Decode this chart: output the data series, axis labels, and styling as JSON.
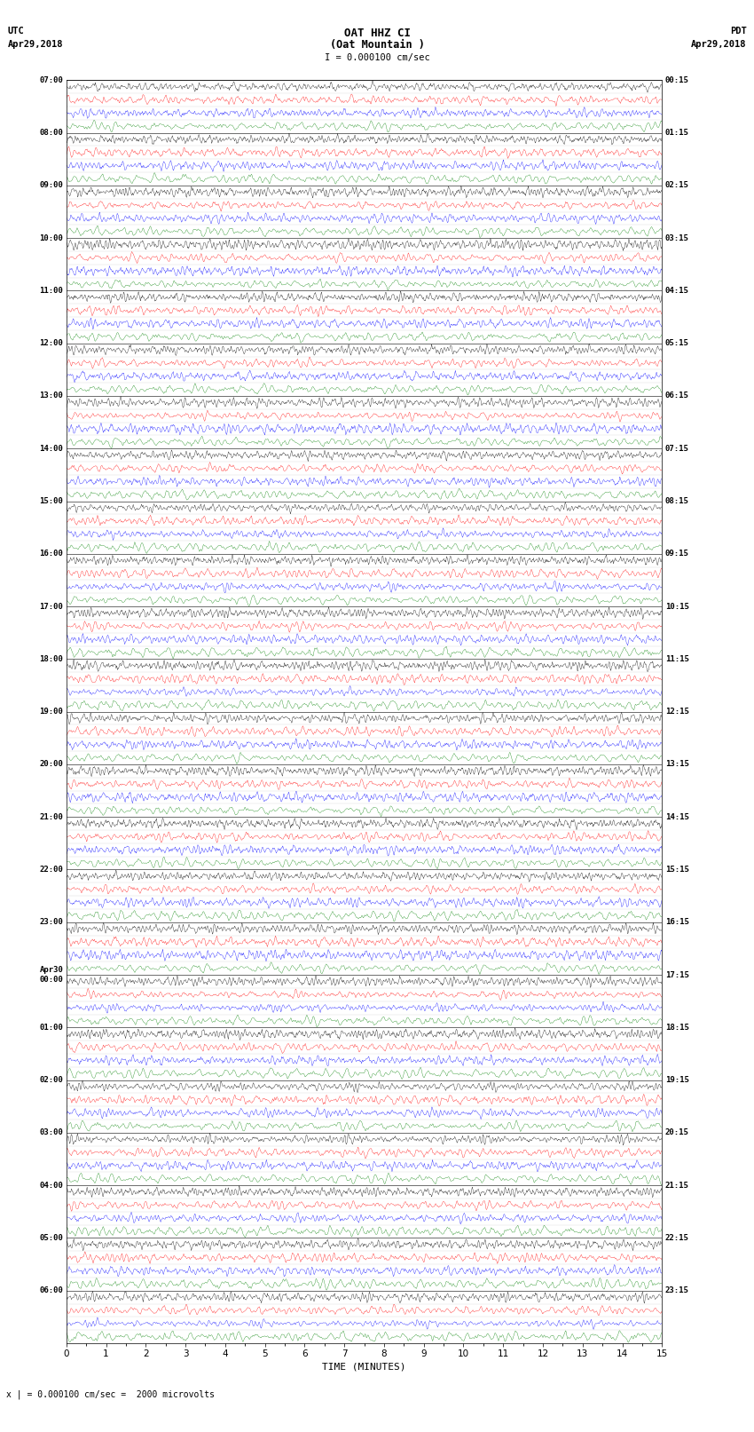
{
  "title_line1": "OAT HHZ CI",
  "title_line2": "(Oat Mountain )",
  "scale_label": "I = 0.000100 cm/sec",
  "bottom_label": "x | = 0.000100 cm/sec =  2000 microvolts",
  "xlabel": "TIME (MINUTES)",
  "utc_label": "UTC",
  "utc_date": "Apr29,2018",
  "pdt_label": "PDT",
  "pdt_date": "Apr29,2018",
  "left_times": [
    "07:00",
    "08:00",
    "09:00",
    "10:00",
    "11:00",
    "12:00",
    "13:00",
    "14:00",
    "15:00",
    "16:00",
    "17:00",
    "18:00",
    "19:00",
    "20:00",
    "21:00",
    "22:00",
    "23:00",
    "Apr30\n00:00",
    "01:00",
    "02:00",
    "03:00",
    "04:00",
    "05:00",
    "06:00"
  ],
  "right_times": [
    "00:15",
    "01:15",
    "02:15",
    "03:15",
    "04:15",
    "05:15",
    "06:15",
    "07:15",
    "08:15",
    "09:15",
    "10:15",
    "11:15",
    "12:15",
    "13:15",
    "14:15",
    "15:15",
    "16:15",
    "17:15",
    "18:15",
    "19:15",
    "20:15",
    "21:15",
    "22:15",
    "23:15"
  ],
  "n_rows": 24,
  "n_sub_traces": 4,
  "minutes_per_row": 15,
  "trace_colors": [
    "black",
    "red",
    "blue",
    "green"
  ],
  "bg_color": "white",
  "plot_bg": "white",
  "seed": 42,
  "samples_per_row": 6000,
  "sub_trace_amp": 0.115,
  "base_freq_hz": 2.5,
  "linewidth": 0.25
}
